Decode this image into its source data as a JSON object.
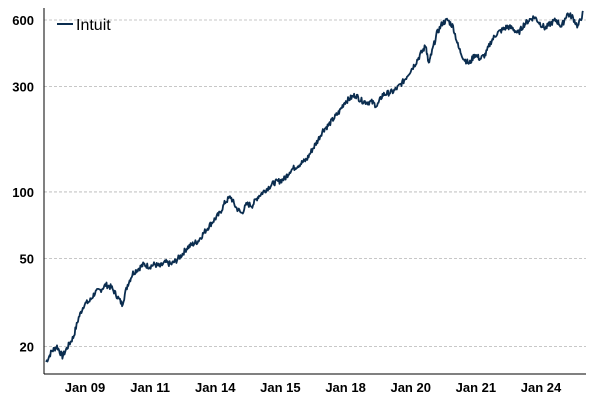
{
  "chart_data": {
    "type": "line",
    "y_scale": "log",
    "ylim": [
      15,
      680
    ],
    "y_ticks": [
      20,
      50,
      100,
      300,
      600
    ],
    "x_ticks": [
      "Jan 09",
      "Jan 11",
      "Jan 14",
      "Jan 15",
      "Jan 18",
      "Jan 20",
      "Jan 21",
      "Jan 24"
    ],
    "grid": "horizontal-dashed",
    "legend_position": "top-left",
    "line_color": "#0b2d4f",
    "series": [
      {
        "name": "Intuit",
        "x": [
          "Jun 08",
          "Aug 08",
          "Oct 08",
          "Dec 08",
          "Feb 09",
          "Apr 09",
          "Jun 09",
          "Aug 09",
          "Oct 09",
          "Dec 09",
          "Feb 10",
          "Apr 10",
          "Jun 10",
          "Aug 10",
          "Oct 10",
          "Dec 10",
          "Feb 11",
          "Apr 11",
          "Jun 11",
          "Aug 11",
          "Oct 11",
          "Dec 11",
          "Feb 12",
          "Apr 12",
          "Jun 12",
          "Aug 12",
          "Oct 12",
          "Dec 12",
          "Feb 13",
          "Apr 13",
          "Jun 13",
          "Aug 13",
          "Oct 13",
          "Dec 13",
          "Feb 14",
          "Apr 14",
          "Jun 14",
          "Aug 14",
          "Oct 14",
          "Dec 14",
          "Feb 15",
          "Apr 15",
          "Jun 15",
          "Aug 15",
          "Oct 15",
          "Dec 15",
          "Feb 16",
          "Apr 16",
          "Jun 16",
          "Aug 16",
          "Oct 16",
          "Dec 16",
          "Feb 17",
          "Apr 17",
          "Jun 17",
          "Aug 17",
          "Oct 17",
          "Dec 17",
          "Feb 18",
          "Apr 18",
          "Jun 18",
          "Aug 18",
          "Oct 18",
          "Dec 18",
          "Feb 19",
          "Apr 19",
          "Jun 19",
          "Aug 19",
          "Oct 19",
          "Dec 19",
          "Feb 20",
          "Mar 20",
          "Apr 20",
          "Jun 20",
          "Aug 20",
          "Oct 20",
          "Dec 20",
          "Feb 21",
          "Apr 21",
          "Jun 21",
          "Aug 21",
          "Oct 21",
          "Dec 21",
          "Feb 22",
          "Apr 22",
          "Jun 22",
          "Aug 22",
          "Oct 22",
          "Dec 22",
          "Feb 23",
          "Apr 23",
          "Jun 23",
          "Aug 23",
          "Oct 23",
          "Dec 23",
          "Feb 24",
          "Apr 24",
          "Jun 24",
          "Aug 24",
          "Oct 24",
          "Dec 24"
        ],
        "values": [
          17,
          19,
          20,
          18,
          20,
          22,
          27,
          31,
          32,
          35,
          36,
          38,
          37,
          34,
          31,
          38,
          43,
          45,
          47,
          46,
          47,
          46,
          48,
          47,
          49,
          52,
          56,
          58,
          60,
          65,
          70,
          75,
          80,
          90,
          95,
          85,
          80,
          88,
          87,
          95,
          100,
          105,
          110,
          112,
          115,
          125,
          130,
          135,
          140,
          155,
          170,
          190,
          200,
          215,
          230,
          255,
          265,
          275,
          260,
          255,
          255,
          245,
          275,
          280,
          285,
          300,
          320,
          350,
          380,
          420,
          460,
          380,
          420,
          520,
          580,
          600,
          560,
          450,
          400,
          380,
          420,
          400,
          420,
          480,
          520,
          540,
          560,
          550,
          520,
          570,
          600,
          620,
          580,
          550,
          580,
          600,
          560,
          640,
          620,
          560,
          650
        ]
      }
    ]
  }
}
